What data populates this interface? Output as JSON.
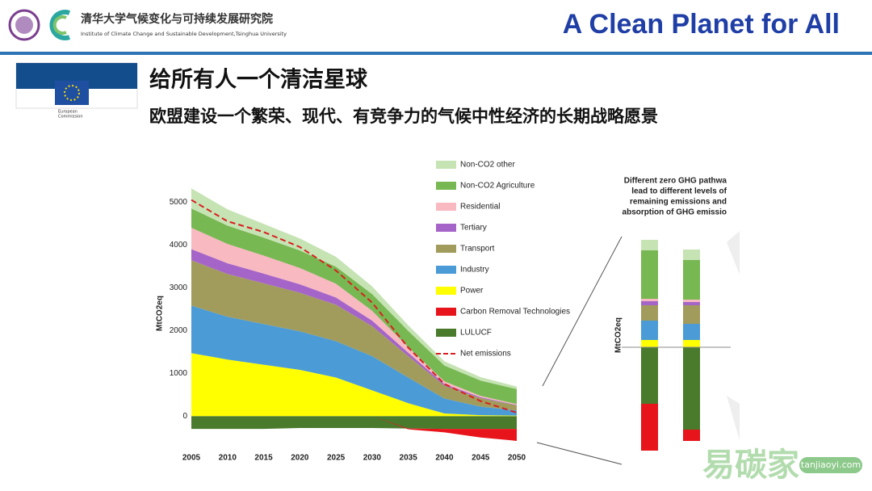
{
  "header": {
    "institute_cn": "清华大学气候变化与可持续发展研究院",
    "institute_en": "Institute of Climate Change and Sustainable Development,Tsinghua University",
    "title": "A Clean Planet for All",
    "eu_logo": [
      "European",
      "Commission"
    ]
  },
  "slide": {
    "title": "给所有人一个清洁星球",
    "subtitle": "欧盟建设一个繁荣、现代、有竞争力的气候中性经济的长期战略愿景"
  },
  "chart_data": [
    {
      "type": "stacked_area",
      "y_label": "MtCO2eq",
      "x": [
        2005,
        2010,
        2015,
        2020,
        2025,
        2030,
        2035,
        2040,
        2045,
        2050
      ],
      "xlim": [
        2005,
        2050
      ],
      "ylim": [
        -600,
        5400
      ],
      "yticks": [
        0,
        1000,
        2000,
        3000,
        4000,
        5000
      ],
      "series": [
        {
          "name": "Non-CO2 other",
          "color": "#c6e3b4",
          "values": [
            470,
            380,
            320,
            280,
            230,
            180,
            130,
            100,
            80,
            60
          ]
        },
        {
          "name": "Non-CO2 Agriculture",
          "color": "#78b853",
          "values": [
            450,
            430,
            420,
            410,
            400,
            390,
            380,
            370,
            360,
            350
          ]
        },
        {
          "name": "Residential",
          "color": "#f9b9c1",
          "values": [
            500,
            450,
            420,
            380,
            320,
            230,
            130,
            60,
            30,
            20
          ]
        },
        {
          "name": "Tertiary",
          "color": "#a565c8",
          "values": [
            260,
            250,
            230,
            200,
            170,
            130,
            80,
            40,
            20,
            10
          ]
        },
        {
          "name": "Transport",
          "color": "#a29c5c",
          "values": [
            1060,
            1000,
            950,
            900,
            850,
            700,
            500,
            300,
            200,
            120
          ]
        },
        {
          "name": "Industry",
          "color": "#4b9bd6",
          "values": [
            1110,
            1000,
            950,
            900,
            850,
            800,
            600,
            350,
            200,
            120
          ]
        },
        {
          "name": "Power",
          "color": "#ffff00",
          "values": [
            1470,
            1320,
            1200,
            1080,
            900,
            600,
            300,
            60,
            20,
            10
          ]
        },
        {
          "name": "Carbon Removal Technologies",
          "color": "#e8141c",
          "values": [
            0,
            0,
            0,
            0,
            0,
            0,
            -20,
            -80,
            -200,
            -280
          ]
        },
        {
          "name": "LULUCF",
          "color": "#4a7b2d",
          "values": [
            -300,
            -300,
            -300,
            -280,
            -280,
            -280,
            -290,
            -300,
            -300,
            -300
          ]
        },
        {
          "name": "Net emissions",
          "type": "line",
          "dashed": true,
          "color": "#d92020",
          "values": [
            5050,
            4550,
            4300,
            3950,
            3400,
            2650,
            1600,
            750,
            350,
            80
          ]
        }
      ]
    },
    {
      "type": "stacked_bar",
      "y_label": "MtCO2eq",
      "categories": [
        null,
        null
      ],
      "ylim": [
        -130,
        135
      ],
      "annotation": [
        "Different zero GHG pathwa",
        "lead to different levels of",
        "remaining emissions and",
        "absorption of GHG emissio"
      ],
      "series": [
        {
          "color": "#c6e3b4",
          "values": [
            13,
            13
          ]
        },
        {
          "color": "#78b853",
          "values": [
            60,
            49
          ]
        },
        {
          "color": "#f9b9c1",
          "values": [
            3,
            3
          ]
        },
        {
          "color": "#a565c8",
          "values": [
            5,
            4
          ]
        },
        {
          "color": "#a29c5c",
          "values": [
            19,
            23
          ]
        },
        {
          "color": "#4b9bd6",
          "values": [
            24,
            20
          ]
        },
        {
          "color": "#ffff00",
          "values": [
            9,
            9
          ]
        },
        {
          "color": "#e8141c",
          "values": [
            -58,
            -14
          ]
        },
        {
          "color": "#4a7b2d",
          "values": [
            -70,
            -102
          ]
        }
      ]
    }
  ],
  "watermark": {
    "text": "易碳家",
    "site": "tanjiaoyi.com"
  }
}
